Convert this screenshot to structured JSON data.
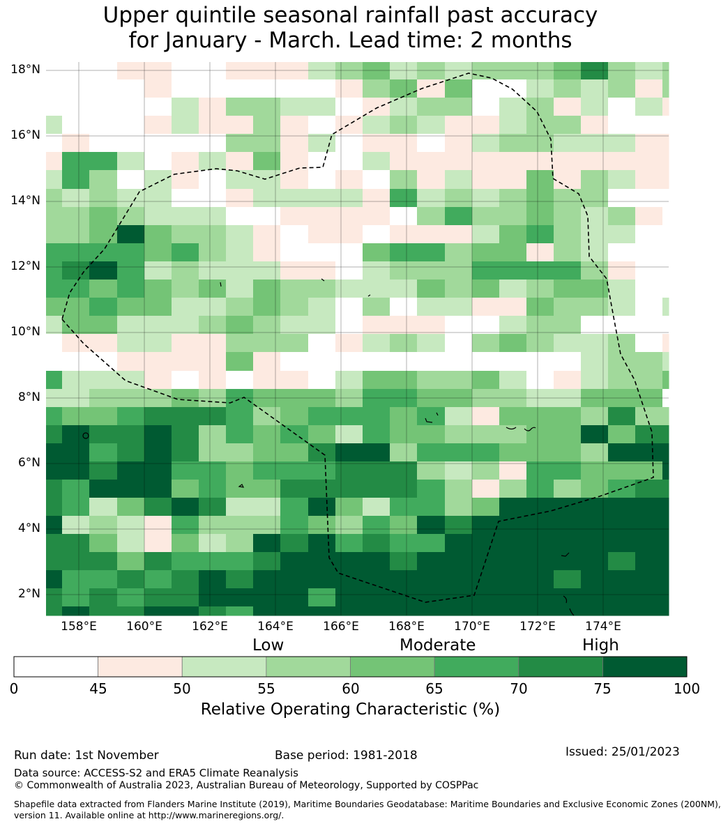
{
  "title_line1": "Upper quintile seasonal rainfall past accuracy",
  "title_line2": "for January - March. Lead time: 2 months",
  "chart_data": {
    "type": "heatmap",
    "title": "Upper quintile seasonal rainfall past accuracy for January - March. Lead time: 2 months",
    "lon_range": [
      157.0,
      176.0
    ],
    "lat_range": [
      1.36,
      18.26
    ],
    "x_ticks": [
      "158°E",
      "160°E",
      "162°E",
      "164°E",
      "166°E",
      "168°E",
      "170°E",
      "172°E",
      "174°E"
    ],
    "y_ticks": [
      "18°N",
      "16°N",
      "14°N",
      "12°N",
      "10°N",
      "8°N",
      "6°N",
      "4°N",
      "2°N"
    ],
    "grid_lines": true,
    "colorbar": {
      "label": "Relative Operating Characteristic (%)",
      "bounds": [
        "0",
        "45",
        "50",
        "55",
        "60",
        "65",
        "70",
        "75",
        "100"
      ],
      "colors": [
        "#ffffff",
        "#fdeae1",
        "#c7e9c0",
        "#a1d99b",
        "#74c476",
        "#41ab5d",
        "#238b45",
        "#005a32"
      ],
      "levels": [
        "Low",
        "Moderate",
        "High"
      ]
    },
    "grid_note": "rows north to south, columns west to east; digit = colorbar bin index",
    "grid": [
      "000110011123423233346323",
      "000010000001341400232313",
      "000002133220123302312021",
      "200012113101232112331000",
      "010000033120110123322211",
      "155201214100211111111111",
      "253021022101031211413211",
      "323220012222152323433000",
      "334322200111103533432310",
      "334743321011011124532200",
      "555545321000455344132000",
      "567523222110233355553100",
      "554543424332224342344200",
      "445442234320302211433202",
      "244222343220111002330000",
      "011221133301232034322301",
      "000111141000000000002332",
      "522210101102443342012334",
      "223334354443554433224440",
      "544566653455545214443633",
      "676676354542544333447466",
      "775676334467735554443777",
      "776775545556663231554447",
      "657774544666665313534566",
      "652467622574255347777777",
      "723215333543547677777777",
      "664214237675655777777777",
      "666465556777767777777677",
      "755656767777777777767777",
      "656566777757777777777777",
      "676677657777777777777777"
    ]
  },
  "footer": {
    "run_date": "Run date: 1st November",
    "base_period": "Base period: 1981-2018",
    "issued": "Issued: 25/01/2023",
    "data_source": "Data source: ACCESS-S2 and ERA5 Climate Reanalysis",
    "copyright": "© Commonwealth of Australia 2023, Australian Bureau of Meteorology, Supported by COSPPac",
    "shapefile_line1": "Shapefile data extracted from Flanders Marine Institute (2019), Maritime Boundaries Geodatabase: Maritime Boundaries and Exclusive Economic Zones (200NM),",
    "shapefile_line2": "version 11. Available online at http://www.marineregions.org/."
  }
}
